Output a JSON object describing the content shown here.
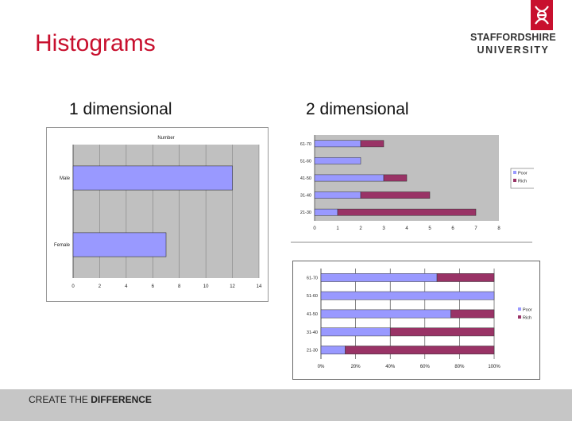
{
  "slide": {
    "title": "Histograms",
    "subtitle_left": "1 dimensional",
    "subtitle_right": "2 dimensional",
    "footer_prefix": "CREATE THE ",
    "footer_bold": "DIFFERENCE",
    "brand_line1": "STAFFORDSHIRE",
    "brand_line2": "UNIVERSITY",
    "brand_color": "#c8102e"
  },
  "chart_data": [
    {
      "type": "bar",
      "orientation": "horizontal",
      "title": "Number",
      "categories": [
        "Male",
        "Female"
      ],
      "values": [
        12,
        7
      ],
      "xlim": [
        0,
        14
      ],
      "xticks": [
        0,
        2,
        4,
        6,
        8,
        10,
        12,
        14
      ],
      "grid": true,
      "bar_color": "#9999ff",
      "plot_bg": "#c0c0c0"
    },
    {
      "type": "bar",
      "orientation": "horizontal",
      "stacked": true,
      "categories": [
        "61-70",
        "51-60",
        "41-50",
        "31-40",
        "21-30"
      ],
      "series": [
        {
          "name": "Poor",
          "values": [
            2,
            2,
            3,
            2,
            1
          ],
          "color": "#9999ff"
        },
        {
          "name": "Rich",
          "values": [
            1,
            0,
            1,
            3,
            6
          ],
          "color": "#993366"
        }
      ],
      "xlim": [
        0,
        8
      ],
      "xticks": [
        0,
        1,
        2,
        3,
        4,
        5,
        6,
        7,
        8
      ],
      "legend": "right",
      "plot_bg": "#c0c0c0"
    },
    {
      "type": "bar",
      "orientation": "horizontal",
      "stacked": true,
      "percent": true,
      "categories": [
        "61-70",
        "51-60",
        "41-50",
        "31-40",
        "21-30"
      ],
      "series": [
        {
          "name": "Poor",
          "values": [
            67,
            100,
            75,
            40,
            14
          ],
          "color": "#9999ff"
        },
        {
          "name": "Rich",
          "values": [
            33,
            0,
            25,
            60,
            86
          ],
          "color": "#993366"
        }
      ],
      "xlim": [
        0,
        100
      ],
      "xticks": [
        "0%",
        "20%",
        "40%",
        "60%",
        "80%",
        "100%"
      ],
      "legend": "right",
      "grid": true,
      "plot_bg": "#ffffff"
    }
  ]
}
